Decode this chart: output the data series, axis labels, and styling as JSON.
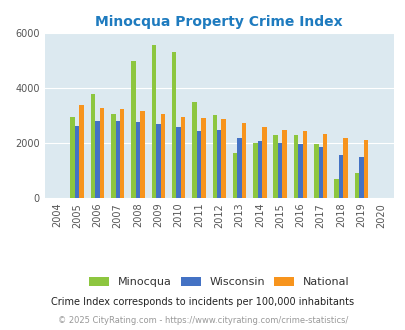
{
  "title": "Minocqua Property Crime Index",
  "years": [
    2004,
    2005,
    2006,
    2007,
    2008,
    2009,
    2010,
    2011,
    2012,
    2013,
    2014,
    2015,
    2016,
    2017,
    2018,
    2019,
    2020
  ],
  "minocqua": [
    0,
    2950,
    3800,
    3050,
    5000,
    5550,
    5300,
    3480,
    3020,
    1650,
    2000,
    2300,
    2300,
    1980,
    680,
    900,
    0
  ],
  "wisconsin": [
    0,
    2620,
    2800,
    2800,
    2750,
    2700,
    2580,
    2420,
    2470,
    2200,
    2080,
    2000,
    1980,
    1870,
    1560,
    1490,
    0
  ],
  "national": [
    0,
    3380,
    3280,
    3220,
    3150,
    3060,
    2960,
    2900,
    2880,
    2730,
    2580,
    2470,
    2420,
    2340,
    2200,
    2120,
    0
  ],
  "minocqua_color": "#8dc63f",
  "wisconsin_color": "#4472c4",
  "national_color": "#f7941d",
  "bg_color": "#dce9f0",
  "ylim": [
    0,
    6000
  ],
  "yticks": [
    0,
    2000,
    4000,
    6000
  ],
  "footnote1": "Crime Index corresponds to incidents per 100,000 inhabitants",
  "footnote2": "© 2025 CityRating.com - https://www.cityrating.com/crime-statistics/",
  "title_color": "#1e7bbf",
  "footnote1_color": "#222222",
  "footnote2_color": "#999999"
}
